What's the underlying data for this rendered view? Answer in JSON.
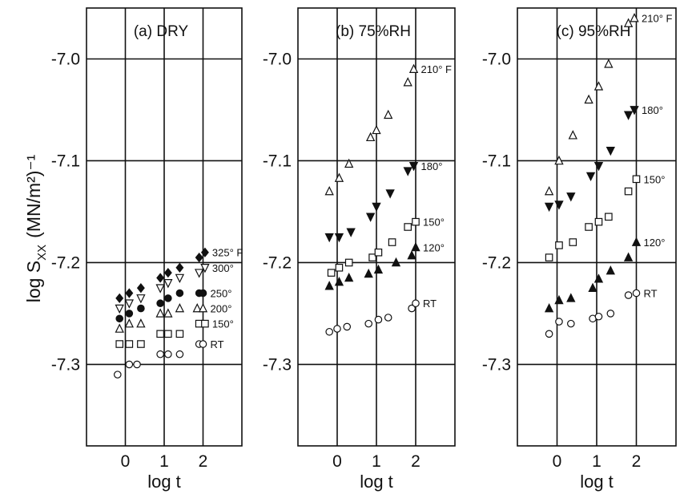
{
  "figure": {
    "ylabel": "log S",
    "ylabel_sub": "XX",
    "ylabel_unit": "(MN/m²)⁻¹",
    "xlabel": "log t"
  },
  "chart_data": [
    {
      "type": "scatter",
      "title": "(a) DRY",
      "xlabel": "log t",
      "ylabel": "log S_XX (MN/m²)⁻¹",
      "x_ticks": [
        "0",
        "1",
        "2"
      ],
      "y_ticks": [
        "-7.0",
        "-7.1",
        "-7.2",
        "-7.3"
      ],
      "xlim": [
        -1,
        3
      ],
      "ylim": [
        -7.38,
        -6.95
      ],
      "grid": true,
      "series": [
        {
          "name": "RT",
          "marker": "circle-open",
          "points": [
            [
              -0.2,
              -7.31
            ],
            [
              0.1,
              -7.3
            ],
            [
              0.3,
              -7.3
            ],
            [
              0.9,
              -7.29
            ],
            [
              1.1,
              -7.29
            ],
            [
              1.4,
              -7.29
            ],
            [
              1.9,
              -7.28
            ],
            [
              2.0,
              -7.28
            ]
          ]
        },
        {
          "name": "150°",
          "marker": "square-open",
          "points": [
            [
              -0.15,
              -7.28
            ],
            [
              0.1,
              -7.28
            ],
            [
              0.4,
              -7.28
            ],
            [
              0.9,
              -7.27
            ],
            [
              1.1,
              -7.27
            ],
            [
              1.4,
              -7.27
            ],
            [
              1.9,
              -7.26
            ],
            [
              2.05,
              -7.26
            ]
          ]
        },
        {
          "name": "200°",
          "marker": "triangle-up-open",
          "points": [
            [
              -0.15,
              -7.265
            ],
            [
              0.1,
              -7.26
            ],
            [
              0.4,
              -7.26
            ],
            [
              0.9,
              -7.25
            ],
            [
              1.1,
              -7.25
            ],
            [
              1.4,
              -7.245
            ],
            [
              1.85,
              -7.245
            ],
            [
              2.0,
              -7.245
            ]
          ]
        },
        {
          "name": "250°",
          "marker": "circle-filled",
          "points": [
            [
              -0.15,
              -7.255
            ],
            [
              0.1,
              -7.25
            ],
            [
              0.4,
              -7.245
            ],
            [
              0.9,
              -7.24
            ],
            [
              1.1,
              -7.235
            ],
            [
              1.4,
              -7.23
            ],
            [
              1.9,
              -7.23
            ],
            [
              2.0,
              -7.23
            ]
          ]
        },
        {
          "name": "300°",
          "marker": "triangle-down-open",
          "points": [
            [
              -0.15,
              -7.245
            ],
            [
              0.1,
              -7.24
            ],
            [
              0.4,
              -7.235
            ],
            [
              0.9,
              -7.225
            ],
            [
              1.1,
              -7.22
            ],
            [
              1.4,
              -7.215
            ],
            [
              1.9,
              -7.21
            ],
            [
              2.05,
              -7.205
            ]
          ]
        },
        {
          "name": "325° F",
          "marker": "diamond-filled",
          "points": [
            [
              -0.15,
              -7.235
            ],
            [
              0.1,
              -7.23
            ],
            [
              0.4,
              -7.225
            ],
            [
              0.9,
              -7.215
            ],
            [
              1.1,
              -7.21
            ],
            [
              1.4,
              -7.205
            ],
            [
              1.9,
              -7.195
            ],
            [
              2.05,
              -7.19
            ]
          ]
        }
      ]
    },
    {
      "type": "scatter",
      "title": "(b) 75%RH",
      "xlabel": "log t",
      "ylabel": "log S_XX (MN/m²)⁻¹",
      "x_ticks": [
        "0",
        "1",
        "2"
      ],
      "y_ticks": [
        "-7.0",
        "-7.1",
        "-7.2",
        "-7.3"
      ],
      "xlim": [
        -1,
        3
      ],
      "ylim": [
        -7.38,
        -6.95
      ],
      "grid": true,
      "series": [
        {
          "name": "RT",
          "marker": "circle-open",
          "points": [
            [
              -0.2,
              -7.268
            ],
            [
              0.0,
              -7.265
            ],
            [
              0.25,
              -7.263
            ],
            [
              0.8,
              -7.26
            ],
            [
              1.05,
              -7.256
            ],
            [
              1.3,
              -7.254
            ],
            [
              1.9,
              -7.245
            ],
            [
              2.0,
              -7.24
            ]
          ]
        },
        {
          "name": "120°",
          "marker": "triangle-up-filled",
          "points": [
            [
              -0.2,
              -7.223
            ],
            [
              0.05,
              -7.219
            ],
            [
              0.3,
              -7.215
            ],
            [
              0.8,
              -7.211
            ],
            [
              1.05,
              -7.207
            ],
            [
              1.5,
              -7.2
            ],
            [
              1.9,
              -7.193
            ],
            [
              2.0,
              -7.185
            ]
          ]
        },
        {
          "name": "150°",
          "marker": "square-open",
          "points": [
            [
              -0.15,
              -7.21
            ],
            [
              0.05,
              -7.205
            ],
            [
              0.3,
              -7.2
            ],
            [
              0.9,
              -7.195
            ],
            [
              1.05,
              -7.19
            ],
            [
              1.4,
              -7.18
            ],
            [
              1.8,
              -7.165
            ],
            [
              2.0,
              -7.16
            ]
          ]
        },
        {
          "name": "180°",
          "marker": "triangle-down-filled",
          "points": [
            [
              -0.2,
              -7.175
            ],
            [
              0.05,
              -7.175
            ],
            [
              0.35,
              -7.17
            ],
            [
              0.85,
              -7.155
            ],
            [
              1.0,
              -7.145
            ],
            [
              1.35,
              -7.132
            ],
            [
              1.8,
              -7.11
            ],
            [
              1.95,
              -7.105
            ]
          ]
        },
        {
          "name": "210° F",
          "marker": "triangle-up-open",
          "points": [
            [
              -0.2,
              -7.13
            ],
            [
              0.05,
              -7.117
            ],
            [
              0.3,
              -7.103
            ],
            [
              0.85,
              -7.077
            ],
            [
              1.0,
              -7.07
            ],
            [
              1.3,
              -7.055
            ],
            [
              1.8,
              -7.023
            ],
            [
              1.95,
              -7.01
            ]
          ]
        }
      ]
    },
    {
      "type": "scatter",
      "title": "(c) 95%RH",
      "xlabel": "log t",
      "ylabel": "log S_XX (MN/m²)⁻¹",
      "x_ticks": [
        "0",
        "1",
        "2"
      ],
      "y_ticks": [
        "-7.0",
        "-7.1",
        "-7.2",
        "-7.3"
      ],
      "xlim": [
        -1,
        3
      ],
      "ylim": [
        -7.38,
        -6.95
      ],
      "grid": true,
      "series": [
        {
          "name": "RT",
          "marker": "circle-open",
          "points": [
            [
              -0.2,
              -7.27
            ],
            [
              0.05,
              -7.258
            ],
            [
              0.35,
              -7.26
            ],
            [
              0.9,
              -7.255
            ],
            [
              1.05,
              -7.253
            ],
            [
              1.35,
              -7.25
            ],
            [
              1.8,
              -7.232
            ],
            [
              2.0,
              -7.23
            ]
          ]
        },
        {
          "name": "120°",
          "marker": "triangle-up-filled",
          "points": [
            [
              -0.2,
              -7.245
            ],
            [
              0.05,
              -7.237
            ],
            [
              0.35,
              -7.235
            ],
            [
              0.9,
              -7.225
            ],
            [
              1.05,
              -7.216
            ],
            [
              1.35,
              -7.208
            ],
            [
              1.8,
              -7.195
            ],
            [
              2.0,
              -7.18
            ]
          ]
        },
        {
          "name": "150°",
          "marker": "square-open",
          "points": [
            [
              -0.2,
              -7.195
            ],
            [
              0.05,
              -7.183
            ],
            [
              0.4,
              -7.18
            ],
            [
              0.8,
              -7.165
            ],
            [
              1.05,
              -7.16
            ],
            [
              1.3,
              -7.155
            ],
            [
              1.8,
              -7.13
            ],
            [
              2.0,
              -7.118
            ]
          ]
        },
        {
          "name": "180°",
          "marker": "triangle-down-filled",
          "points": [
            [
              -0.2,
              -7.145
            ],
            [
              0.05,
              -7.143
            ],
            [
              0.35,
              -7.135
            ],
            [
              0.85,
              -7.115
            ],
            [
              1.05,
              -7.105
            ],
            [
              1.35,
              -7.09
            ],
            [
              1.8,
              -7.055
            ],
            [
              1.95,
              -7.05
            ]
          ]
        },
        {
          "name": "210° F",
          "marker": "triangle-up-open",
          "points": [
            [
              -0.2,
              -7.13
            ],
            [
              0.05,
              -7.1
            ],
            [
              0.4,
              -7.075
            ],
            [
              0.8,
              -7.04
            ],
            [
              1.05,
              -7.027
            ],
            [
              1.3,
              -7.005
            ],
            [
              1.8,
              -6.965
            ],
            [
              1.95,
              -6.96
            ]
          ]
        }
      ]
    }
  ]
}
